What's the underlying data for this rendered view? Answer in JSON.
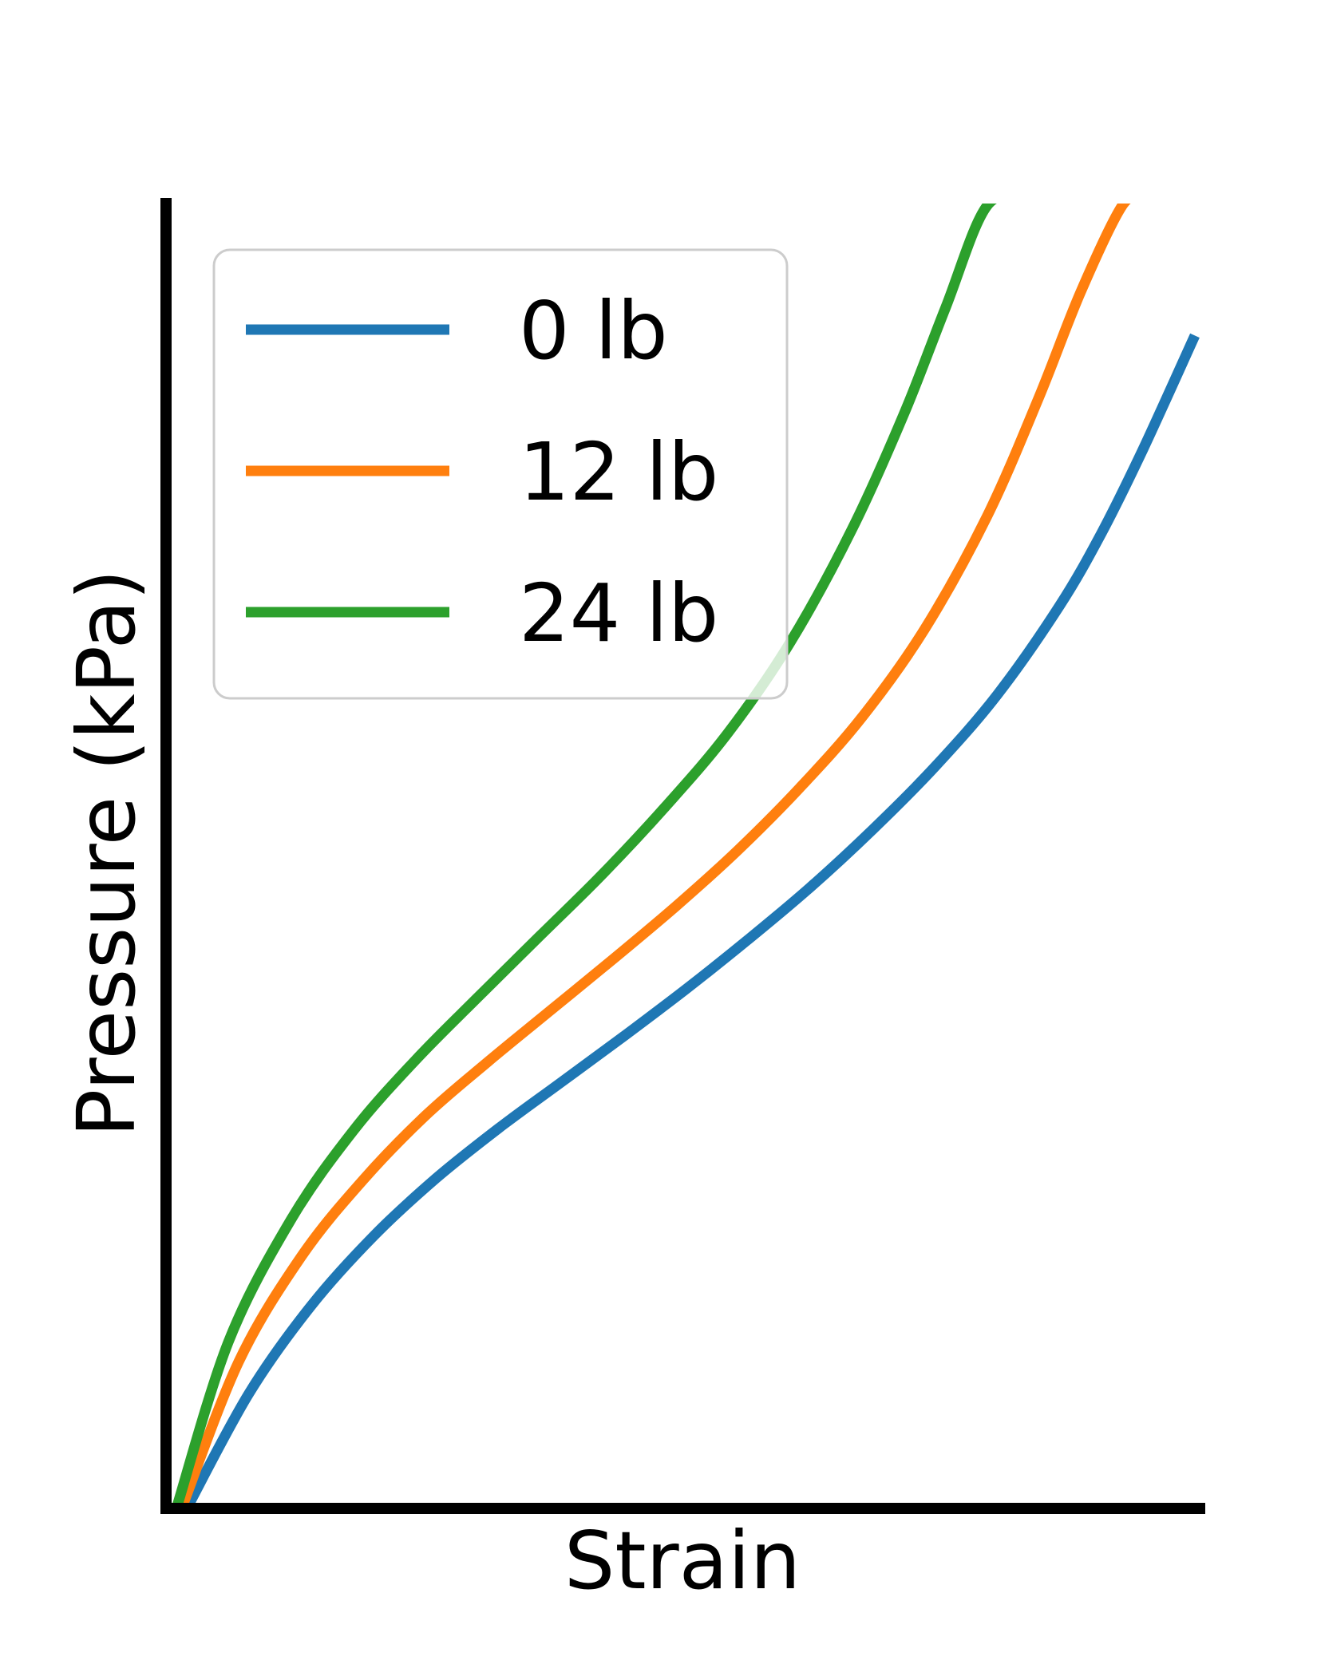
{
  "chart_data": {
    "type": "line",
    "title": "",
    "xlabel": "Strain",
    "ylabel": "Pressure (kPa)",
    "xlim": [
      0,
      1
    ],
    "ylim": [
      0,
      1
    ],
    "grid": false,
    "ticks": false,
    "legend": {
      "placement": "top-left"
    },
    "series": [
      {
        "name": "0 lb",
        "color": "#1f77b4",
        "x": [
          0.02,
          0.08,
          0.14,
          0.2,
          0.26,
          0.32,
          0.38,
          0.44,
          0.5,
          0.56,
          0.62,
          0.68,
          0.74,
          0.8,
          0.86,
          0.9,
          0.94,
          0.99
        ],
        "y": [
          0.0,
          0.088,
          0.155,
          0.208,
          0.252,
          0.29,
          0.325,
          0.36,
          0.396,
          0.434,
          0.474,
          0.518,
          0.566,
          0.621,
          0.689,
          0.744,
          0.808,
          0.895
        ]
      },
      {
        "name": "12 lb",
        "color": "#ff7f0e",
        "x": [
          0.015,
          0.07,
          0.13,
          0.19,
          0.25,
          0.31,
          0.37,
          0.43,
          0.49,
          0.55,
          0.61,
          0.67,
          0.73,
          0.79,
          0.84,
          0.88,
          0.92,
          0.94
        ],
        "y": [
          0.0,
          0.112,
          0.192,
          0.251,
          0.3,
          0.341,
          0.38,
          0.419,
          0.459,
          0.502,
          0.55,
          0.604,
          0.671,
          0.757,
          0.848,
          0.928,
          0.994,
          1.0
        ]
      },
      {
        "name": "24 lb",
        "color": "#2ca02c",
        "x": [
          0.01,
          0.06,
          0.12,
          0.18,
          0.24,
          0.3,
          0.36,
          0.42,
          0.48,
          0.54,
          0.6,
          0.66,
          0.71,
          0.75,
          0.79,
          0.83,
          0.845
        ],
        "y": [
          0.0,
          0.127,
          0.22,
          0.288,
          0.342,
          0.39,
          0.437,
          0.484,
          0.535,
          0.591,
          0.66,
          0.747,
          0.835,
          0.916,
          0.994,
          1.0,
          1.0
        ]
      }
    ]
  }
}
